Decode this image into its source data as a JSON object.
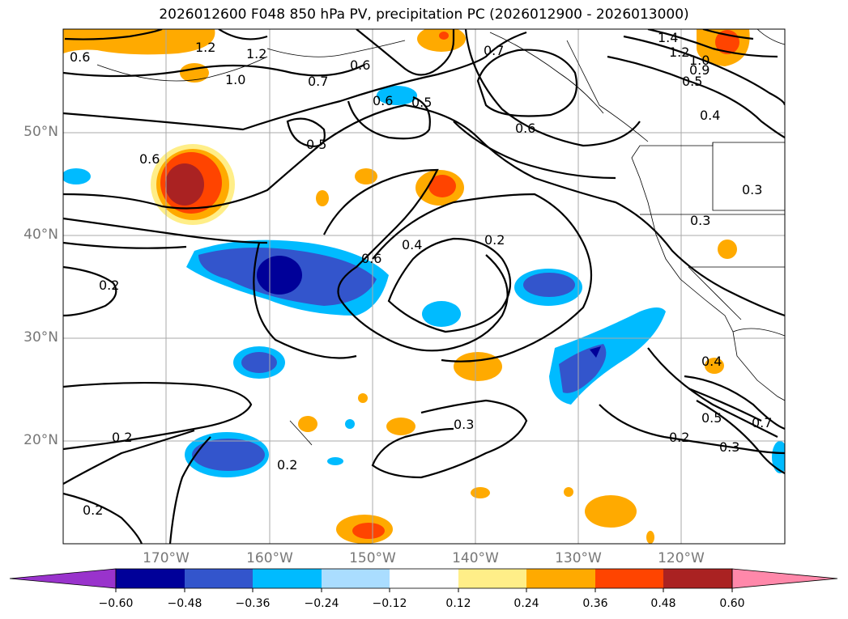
{
  "title": "2026012600 F048 850 hPa PV, precipitation PC (2026012900 - 2026013000)",
  "lat_labels": [
    "50°N",
    "40°N",
    "30°N",
    "20°N"
  ],
  "lon_labels": [
    "170°W",
    "160°W",
    "150°W",
    "140°W",
    "130°W",
    "120°W"
  ],
  "colorbar": {
    "ticks": [
      "−0.60",
      "−0.48",
      "−0.36",
      "−0.24",
      "−0.12",
      "0.12",
      "0.24",
      "0.36",
      "0.48",
      "0.60"
    ],
    "colors": [
      "#9933cc",
      "#000099",
      "#3355cc",
      "#00bbff",
      "#aaddff",
      "#ffffff",
      "#ffee88",
      "#ffaa00",
      "#ff4400",
      "#aa2222",
      "#ff88aa"
    ]
  },
  "contour_labels": [
    "1.2",
    "1.2",
    "1.0",
    "0.7",
    "0.6",
    "0.6",
    "0.5",
    "0.7",
    "0.6",
    "1.4",
    "1.2",
    "1.0",
    "0.9",
    "0.5",
    "0.4",
    "0.6",
    "0.5",
    "0.6",
    "0.4",
    "0.2",
    "0.2",
    "0.3",
    "0.3",
    "0.3",
    "0.4",
    "0.5",
    "0.7",
    "0.3",
    "0.2",
    "0.2",
    "0.2",
    "0.2",
    "0.6"
  ]
}
